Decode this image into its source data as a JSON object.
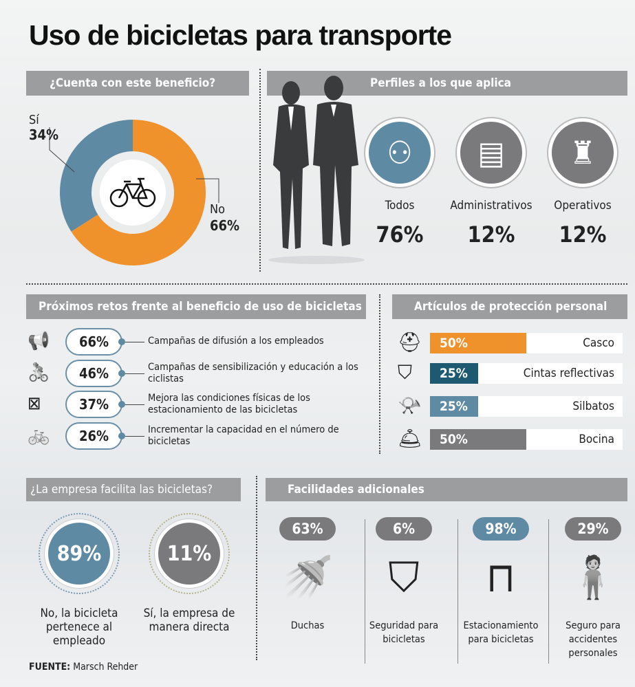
{
  "title": "Uso de bicicletas para transporte",
  "beneficio": {
    "header": "¿Cuenta con este beneficio?",
    "si_label": "Sí",
    "si_value": "34%",
    "no_label": "No",
    "no_value": "66%",
    "icon": "bicycle-icon"
  },
  "perfiles": {
    "header": "Perfiles a los que aplica",
    "items": [
      {
        "label": "Todos",
        "value": "76%",
        "icon": "group-icon",
        "color": "#5f8aa3"
      },
      {
        "label": "Administrativos",
        "value": "12%",
        "icon": "office-worker-icon",
        "color": "#7a7a7c"
      },
      {
        "label": "Operativos",
        "value": "12%",
        "icon": "worker-helmet-icon",
        "color": "#7a7a7c"
      }
    ]
  },
  "retos": {
    "header": "Próximos retos frente al beneficio de uso de bicicletas",
    "items": [
      {
        "value": "66%",
        "text": "Campañas de difusión a los empleados",
        "icon": "megaphone-person-icon"
      },
      {
        "value": "46%",
        "text": "Campañas de sensibilización y educación a los ciclistas",
        "icon": "megaphone-cyclist-icon"
      },
      {
        "value": "37%",
        "text": "Mejora las condiciones físicas de los estacionamiento de las bicicletas",
        "icon": "parking-tools-icon"
      },
      {
        "value": "26%",
        "text": "Incrementar la capacidad en el número de bicicletas",
        "icon": "bicycle-plus-icon"
      }
    ]
  },
  "proteccion": {
    "header": "Artículos de protección personal",
    "items": [
      {
        "value": "50%",
        "label": "Casco",
        "color": "#f0922b",
        "icon": "helmet-icon"
      },
      {
        "value": "25%",
        "label": "Cintas reflectivas",
        "color": "#1d5a72",
        "icon": "reflective-badge-icon"
      },
      {
        "value": "25%",
        "label": "Silbatos",
        "color": "#5f8aa3",
        "icon": "whistle-icon"
      },
      {
        "value": "50%",
        "label": "Bocina",
        "color": "#7a7a7c",
        "icon": "bell-icon"
      }
    ]
  },
  "facilita": {
    "header": "¿La empresa facilita las bicicletas?",
    "items": [
      {
        "value": "89%",
        "label": "No, la bicicleta pertenece al empleado",
        "color": "#5f8aa3"
      },
      {
        "value": "11%",
        "label": "Sí, la empresa de manera directa",
        "color": "#7a7a7c"
      }
    ]
  },
  "facilidades": {
    "header": "Facilidades adicionales",
    "items": [
      {
        "value": "63%",
        "label": "Duchas",
        "color": "#7a7a7c",
        "icon": "shower-icon"
      },
      {
        "value": "6%",
        "label": "Seguridad para bicicletas",
        "color": "#7a7a7c",
        "icon": "bike-shield-icon"
      },
      {
        "value": "98%",
        "label": "Estacionamiento para bicicletas",
        "color": "#5f8aa3",
        "icon": "bike-parking-icon"
      },
      {
        "value": "29%",
        "label": "Seguro para accidentes personales",
        "color": "#7a7a7c",
        "icon": "injured-person-icon"
      }
    ]
  },
  "fuente": {
    "label": "FUENTE:",
    "value": "Marsch Rehder"
  },
  "chart_data": [
    {
      "type": "pie",
      "title": "¿Cuenta con este beneficio?",
      "categories": [
        "Sí",
        "No"
      ],
      "values": [
        34,
        66
      ],
      "colors": [
        "#5f8aa3",
        "#f0922b"
      ]
    },
    {
      "type": "bar",
      "title": "Artículos de protección personal",
      "categories": [
        "Casco",
        "Cintas reflectivas",
        "Silbatos",
        "Bocina"
      ],
      "values": [
        50,
        25,
        25,
        50
      ],
      "ylim": [
        0,
        100
      ]
    }
  ]
}
